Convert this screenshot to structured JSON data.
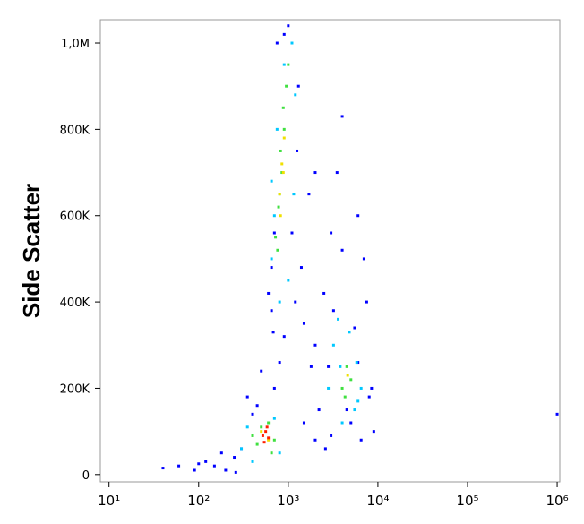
{
  "chart_data": {
    "type": "scatter",
    "ylabel": "Side Scatter",
    "xscale": "log",
    "xlim": [
      8,
      1070000
    ],
    "ylim": [
      -17000,
      1054000
    ],
    "xticks": [
      {
        "value": 10,
        "label": "10¹"
      },
      {
        "value": 100,
        "label": "10²"
      },
      {
        "value": 1000,
        "label": "10³"
      },
      {
        "value": 10000,
        "label": "10⁴"
      },
      {
        "value": 100000,
        "label": "10⁵"
      },
      {
        "value": 1000000,
        "label": "10⁶"
      }
    ],
    "yticks": [
      0,
      {
        "value": 200000,
        "label": "200K"
      },
      {
        "value": 400000,
        "label": "400K"
      },
      {
        "value": 600000,
        "label": "600K"
      },
      {
        "value": 800000,
        "label": "800K"
      },
      {
        "value": 1000000,
        "label": "1,0M"
      }
    ],
    "series": [
      {
        "color": "#0000ff",
        "x": [
          150,
          200,
          250,
          300,
          400,
          350,
          180,
          120,
          260,
          450,
          700,
          800,
          900,
          1200,
          1500,
          2000,
          2500,
          3000,
          3500,
          4000,
          5000,
          6000,
          7000,
          8000,
          9000,
          1800,
          2200,
          1400,
          600,
          650,
          750,
          1000,
          1300,
          1700,
          2800,
          3200,
          4500,
          5500,
          6500,
          8500,
          1100,
          1250,
          900,
          700,
          650,
          680,
          1500,
          2000,
          2600,
          3000,
          500,
          40,
          60,
          90,
          100,
          1000000,
          7500,
          6000,
          4000,
          2000
        ],
        "y": [
          20000,
          10000,
          40000,
          60000,
          140000,
          180000,
          50000,
          30000,
          5000,
          160000,
          200000,
          260000,
          320000,
          400000,
          350000,
          300000,
          420000,
          560000,
          700000,
          830000,
          120000,
          600000,
          500000,
          180000,
          100000,
          250000,
          150000,
          480000,
          420000,
          380000,
          1000000,
          1040000,
          900000,
          650000,
          250000,
          380000,
          150000,
          340000,
          80000,
          200000,
          560000,
          750000,
          1020000,
          560000,
          480000,
          330000,
          120000,
          80000,
          60000,
          90000,
          240000,
          15000,
          20000,
          10000,
          25000,
          140000,
          400000,
          260000,
          520000,
          700000
        ]
      },
      {
        "color": "#00c8ff",
        "x": [
          650,
          700,
          900,
          1100,
          1000,
          750,
          1200,
          800,
          650,
          1150,
          300,
          350,
          700,
          800,
          400,
          3200,
          3600,
          5500,
          6500,
          4000,
          4800,
          3800,
          5800,
          2800,
          6000
        ],
        "y": [
          500000,
          600000,
          950000,
          1000000,
          450000,
          800000,
          880000,
          400000,
          680000,
          650000,
          60000,
          110000,
          130000,
          50000,
          30000,
          300000,
          360000,
          150000,
          200000,
          120000,
          330000,
          250000,
          260000,
          200000,
          170000
        ]
      },
      {
        "color": "#40e040",
        "x": [
          720,
          780,
          820,
          880,
          950,
          1000,
          760,
          900,
          850,
          800,
          450,
          500,
          600,
          700,
          400,
          650,
          4000,
          4500,
          5000,
          4300
        ],
        "y": [
          550000,
          620000,
          750000,
          850000,
          900000,
          950000,
          520000,
          800000,
          700000,
          650000,
          70000,
          110000,
          120000,
          80000,
          90000,
          50000,
          200000,
          250000,
          220000,
          180000
        ]
      },
      {
        "color": "#f0e000",
        "x": [
          800,
          850,
          900,
          820,
          880,
          500,
          600,
          4600
        ],
        "y": [
          650000,
          720000,
          780000,
          600000,
          700000,
          100000,
          80000,
          230000
        ]
      },
      {
        "color": "#ff2000",
        "x": [
          520,
          560,
          600,
          540,
          580
        ],
        "y": [
          90000,
          100000,
          85000,
          75000,
          110000
        ]
      }
    ]
  }
}
